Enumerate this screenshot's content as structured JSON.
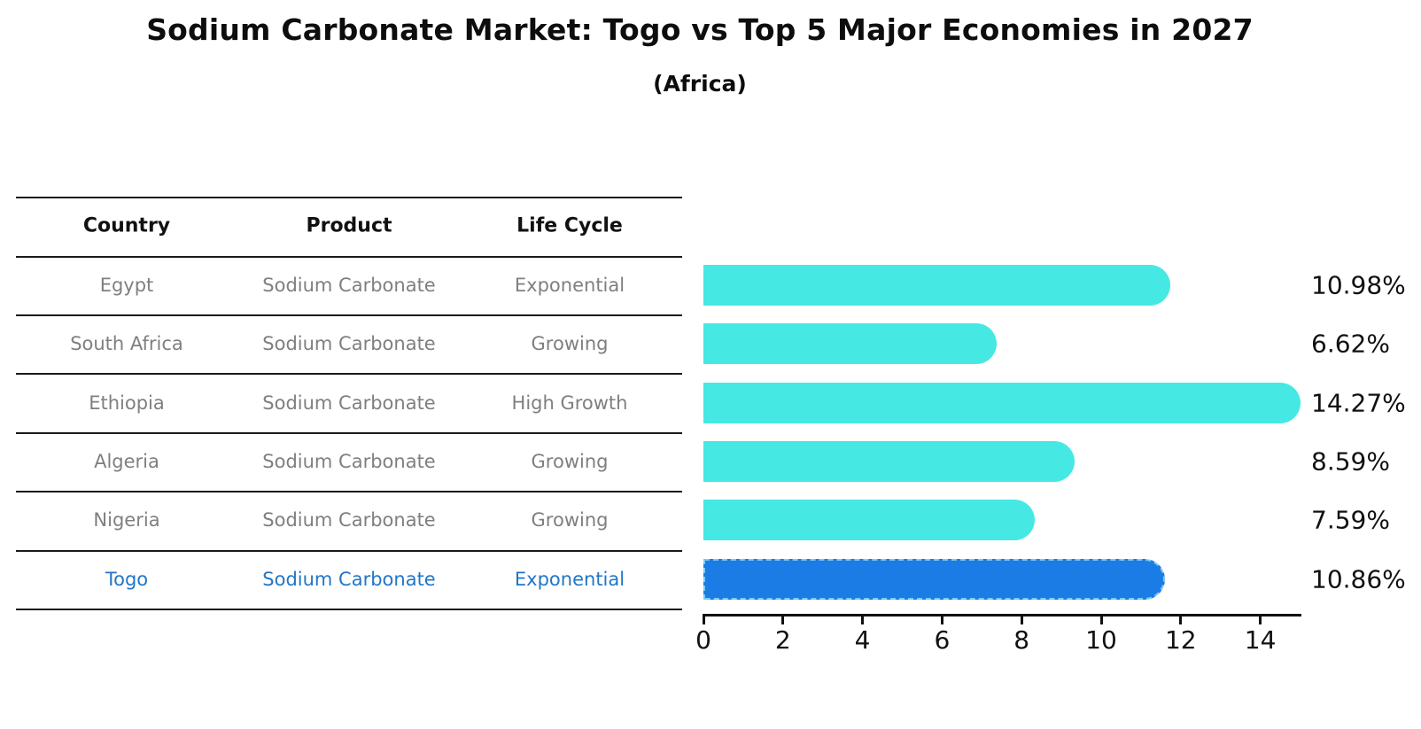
{
  "title": "Sodium Carbonate Market: Togo vs Top 5 Major Economies in 2027",
  "subtitle": "(Africa)",
  "table": {
    "headers": [
      "Country",
      "Product",
      "Life Cycle"
    ],
    "rows": [
      {
        "country": "Egypt",
        "product": "Sodium Carbonate",
        "life_cycle": "Exponential",
        "highlighted": false
      },
      {
        "country": "South Africa",
        "product": "Sodium Carbonate",
        "life_cycle": "Growing",
        "highlighted": false
      },
      {
        "country": "Ethiopia",
        "product": "Sodium Carbonate",
        "life_cycle": "High Growth",
        "highlighted": false
      },
      {
        "country": "Algeria",
        "product": "Sodium Carbonate",
        "life_cycle": "Growing",
        "highlighted": false
      },
      {
        "country": "Nigeria",
        "product": "Sodium Carbonate",
        "life_cycle": "Growing",
        "highlighted": false
      },
      {
        "country": "Togo",
        "product": "Sodium Carbonate",
        "life_cycle": "Exponential",
        "highlighted": true
      }
    ]
  },
  "chart_data": {
    "type": "bar",
    "orientation": "horizontal",
    "categories": [
      "Egypt",
      "South Africa",
      "Ethiopia",
      "Algeria",
      "Nigeria",
      "Togo"
    ],
    "values": [
      10.98,
      6.62,
      14.27,
      8.59,
      7.59,
      10.86
    ],
    "value_labels": [
      "10.98%",
      "6.62%",
      "14.27%",
      "8.59%",
      "7.59%",
      "10.86%"
    ],
    "x_ticks": [
      0,
      2,
      4,
      6,
      8,
      10,
      12,
      14
    ],
    "xlim": [
      0,
      15.05
    ],
    "highlight_index": 5,
    "grid": false,
    "colors": {
      "bar": "#46e8e3",
      "highlight_bar": "#1b7ce5",
      "highlight_border": "#7cc9f2",
      "highlight_text": "#2176c8",
      "row_text": "#7f7f7f",
      "axis_text": "#111111"
    }
  }
}
